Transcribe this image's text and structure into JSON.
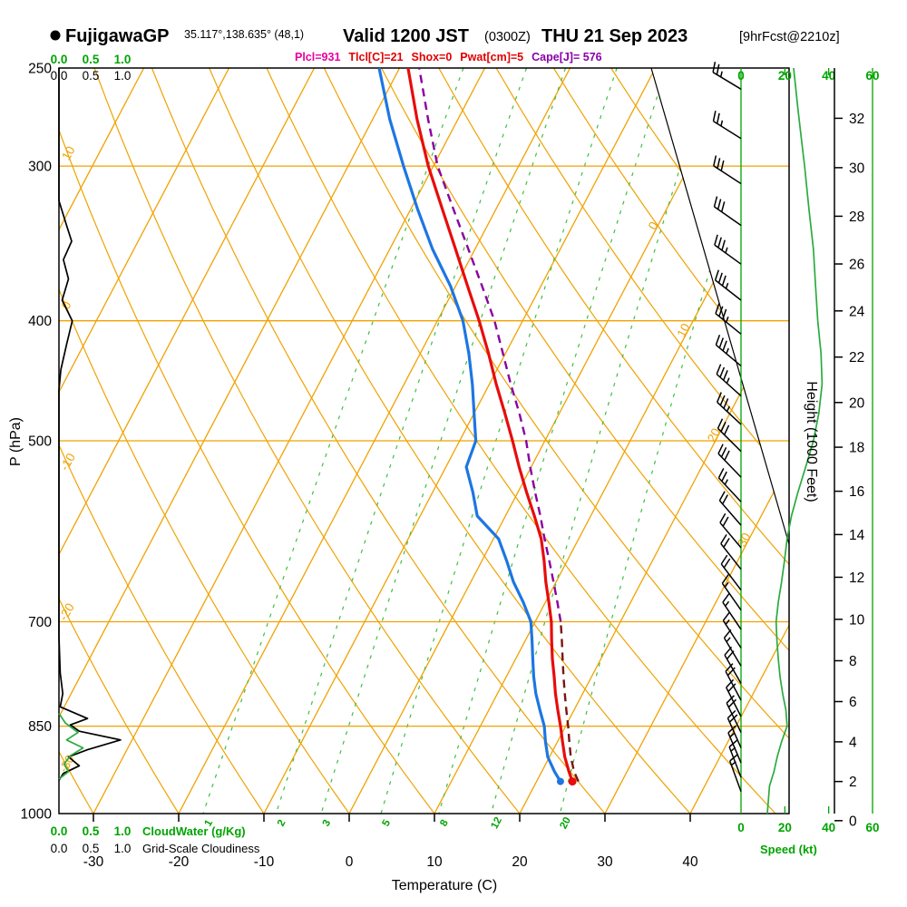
{
  "header": {
    "station": "FujigawaGP",
    "coords": "35.117°,138.635° (48,1)",
    "valid": "Valid 1200 JST",
    "valid_z": "(0300Z)",
    "date": "THU 21 Sep 2023",
    "fcst": "[9hrFcst@2210z]",
    "params": [
      {
        "text": "Plcl=931",
        "color": "#e800a0"
      },
      {
        "text": "Tlcl[C]=21",
        "color": "#e00000"
      },
      {
        "text": "Shox=0",
        "color": "#e00000"
      },
      {
        "text": "Pwat[cm]=5",
        "color": "#e00000"
      },
      {
        "text": "Cape[J]= 576",
        "color": "#8800aa"
      }
    ]
  },
  "axes": {
    "pressure_label": "P (hPa)",
    "pressure_ticks": [
      250,
      300,
      400,
      500,
      700,
      850,
      1000
    ],
    "temp_label": "Temperature (C)",
    "temp_ticks": [
      -30,
      -20,
      -10,
      0,
      10,
      20,
      30,
      40
    ],
    "height_label": "Height (1000 Feet)",
    "height_ticks": [
      0,
      2,
      4,
      6,
      8,
      10,
      12,
      14,
      16,
      18,
      20,
      22,
      24,
      26,
      28,
      30,
      32
    ],
    "speed_label": "Speed (kt)",
    "speed_ticks": [
      0,
      20,
      40,
      60
    ],
    "cloud_scale": [
      "0.0",
      "0.5",
      "1.0"
    ],
    "cloudwater_label": "CloudWater (g/Kg)",
    "cloudiness_label": "Grid-Scale Cloudiness"
  },
  "grid": {
    "isotherm_labels": [
      0,
      10,
      20,
      30
    ],
    "adiabat_labels": [
      10,
      0,
      -10,
      -20,
      -30
    ],
    "mixing_ratios": [
      1,
      2,
      3,
      5,
      8,
      12,
      20
    ]
  },
  "colors": {
    "grid_orange": "#f0a202",
    "green": "#00a400",
    "dash_green": "#3fbf3f",
    "curve_green": "#2bab3f",
    "temperature": "#e80c0c",
    "dewpoint": "#1d76e2",
    "parcel_upper": "#8a00a0",
    "parcel_lower": "#7a1414",
    "black": "#000000"
  },
  "chart_data": {
    "type": "skewt-sounding",
    "pressure_range": [
      250,
      1000
    ],
    "temperature": [
      [
        942,
        24.2
      ],
      [
        925,
        23.2
      ],
      [
        900,
        21.8
      ],
      [
        875,
        20.6
      ],
      [
        850,
        19.4
      ],
      [
        825,
        18.1
      ],
      [
        800,
        16.8
      ],
      [
        775,
        15.6
      ],
      [
        750,
        14.3
      ],
      [
        725,
        13.1
      ],
      [
        700,
        11.9
      ],
      [
        675,
        10.4
      ],
      [
        650,
        8.8
      ],
      [
        625,
        7.3
      ],
      [
        600,
        5.6
      ],
      [
        575,
        3.4
      ],
      [
        550,
        1.0
      ],
      [
        525,
        -1.4
      ],
      [
        500,
        -3.8
      ],
      [
        475,
        -6.4
      ],
      [
        450,
        -9.2
      ],
      [
        425,
        -12.0
      ],
      [
        400,
        -15.1
      ],
      [
        375,
        -18.6
      ],
      [
        350,
        -22.3
      ],
      [
        325,
        -26.3
      ],
      [
        300,
        -30.6
      ],
      [
        275,
        -34.8
      ],
      [
        250,
        -39.0
      ]
    ],
    "dewpoint": [
      [
        942,
        22.8
      ],
      [
        925,
        21.5
      ],
      [
        900,
        19.8
      ],
      [
        875,
        18.6
      ],
      [
        850,
        17.5
      ],
      [
        825,
        16.0
      ],
      [
        800,
        14.5
      ],
      [
        775,
        13.2
      ],
      [
        750,
        12.0
      ],
      [
        725,
        10.8
      ],
      [
        700,
        9.5
      ],
      [
        675,
        7.4
      ],
      [
        650,
        5.0
      ],
      [
        625,
        2.9
      ],
      [
        600,
        0.6
      ],
      [
        575,
        -3.3
      ],
      [
        550,
        -5.3
      ],
      [
        525,
        -7.6
      ],
      [
        500,
        -8.1
      ],
      [
        475,
        -10.0
      ],
      [
        450,
        -12.0
      ],
      [
        425,
        -14.3
      ],
      [
        400,
        -17.0
      ],
      [
        375,
        -20.6
      ],
      [
        350,
        -25.0
      ],
      [
        325,
        -29.2
      ],
      [
        300,
        -33.5
      ],
      [
        275,
        -38.0
      ],
      [
        250,
        -42.4
      ]
    ],
    "parcel": [
      [
        942,
        24.9
      ],
      [
        925,
        23.8
      ],
      [
        900,
        22.5
      ],
      [
        875,
        21.4
      ],
      [
        850,
        20.3
      ],
      [
        825,
        19.1
      ],
      [
        800,
        17.9
      ],
      [
        775,
        16.7
      ],
      [
        750,
        15.5
      ],
      [
        725,
        14.3
      ],
      [
        700,
        13.0
      ],
      [
        675,
        11.4
      ],
      [
        650,
        9.7
      ],
      [
        625,
        7.9
      ],
      [
        600,
        6.0
      ],
      [
        575,
        4.1
      ],
      [
        550,
        2.0
      ],
      [
        525,
        -0.1
      ],
      [
        500,
        -2.2
      ],
      [
        475,
        -4.7
      ],
      [
        450,
        -7.5
      ],
      [
        425,
        -10.3
      ],
      [
        400,
        -13.3
      ],
      [
        375,
        -16.9
      ],
      [
        350,
        -20.8
      ],
      [
        325,
        -25.0
      ],
      [
        300,
        -29.5
      ],
      [
        275,
        -33.5
      ],
      [
        250,
        -37.7
      ]
    ],
    "cloudiness": [
      [
        250,
        0
      ],
      [
        320,
        0
      ],
      [
        335,
        0.12
      ],
      [
        345,
        0.2
      ],
      [
        357,
        0.07
      ],
      [
        370,
        0.15
      ],
      [
        385,
        0.05
      ],
      [
        400,
        0.21
      ],
      [
        418,
        0.12
      ],
      [
        438,
        0.03
      ],
      [
        455,
        0
      ],
      [
        720,
        0
      ],
      [
        770,
        0.02
      ],
      [
        800,
        0.06
      ],
      [
        820,
        0.02
      ],
      [
        838,
        0.45
      ],
      [
        848,
        0.18
      ],
      [
        858,
        0.32
      ],
      [
        872,
        0.97
      ],
      [
        888,
        0.45
      ],
      [
        900,
        0.15
      ],
      [
        915,
        0.32
      ],
      [
        928,
        0.07
      ],
      [
        940,
        0
      ]
    ],
    "cloudwater": [
      [
        830,
        0
      ],
      [
        845,
        0.1
      ],
      [
        860,
        0.3
      ],
      [
        872,
        0.12
      ],
      [
        885,
        0.38
      ],
      [
        898,
        0.18
      ],
      [
        912,
        0.08
      ],
      [
        925,
        0.15
      ],
      [
        938,
        0
      ]
    ],
    "wind_speed": [
      [
        1000,
        12
      ],
      [
        975,
        12.5
      ],
      [
        950,
        13
      ],
      [
        925,
        15
      ],
      [
        900,
        16.5
      ],
      [
        875,
        18.5
      ],
      [
        850,
        21
      ],
      [
        825,
        20.5
      ],
      [
        800,
        19
      ],
      [
        775,
        17.8
      ],
      [
        750,
        17
      ],
      [
        725,
        16.4
      ],
      [
        700,
        16
      ],
      [
        675,
        17
      ],
      [
        650,
        18.5
      ],
      [
        625,
        19.8
      ],
      [
        600,
        21
      ],
      [
        575,
        23
      ],
      [
        550,
        26
      ],
      [
        525,
        29.5
      ],
      [
        500,
        33
      ],
      [
        475,
        35.5
      ],
      [
        450,
        37
      ],
      [
        425,
        36.5
      ],
      [
        400,
        35
      ],
      [
        375,
        34
      ],
      [
        350,
        33
      ],
      [
        325,
        31
      ],
      [
        300,
        29
      ],
      [
        285,
        27.5
      ],
      [
        270,
        26
      ],
      [
        250,
        24
      ]
    ],
    "wind_barbs": [
      [
        960,
        13,
        340
      ],
      [
        935,
        14,
        339
      ],
      [
        910,
        16,
        337
      ],
      [
        885,
        18,
        336
      ],
      [
        860,
        20,
        334
      ],
      [
        835,
        21,
        333
      ],
      [
        810,
        19,
        332
      ],
      [
        785,
        18,
        330
      ],
      [
        760,
        17,
        329
      ],
      [
        735,
        17,
        327
      ],
      [
        710,
        16,
        326
      ],
      [
        685,
        17,
        325
      ],
      [
        660,
        18,
        323
      ],
      [
        635,
        19,
        322
      ],
      [
        610,
        21,
        320
      ],
      [
        585,
        22,
        319
      ],
      [
        560,
        25,
        317
      ],
      [
        535,
        28,
        316
      ],
      [
        510,
        31,
        315
      ],
      [
        485,
        34,
        313
      ],
      [
        460,
        36,
        312
      ],
      [
        435,
        37,
        310
      ],
      [
        410,
        35,
        309
      ],
      [
        385,
        34,
        308
      ],
      [
        360,
        33,
        306
      ],
      [
        335,
        32,
        305
      ],
      [
        310,
        30,
        303
      ],
      [
        285,
        27,
        302
      ],
      [
        260,
        25,
        301
      ]
    ]
  }
}
